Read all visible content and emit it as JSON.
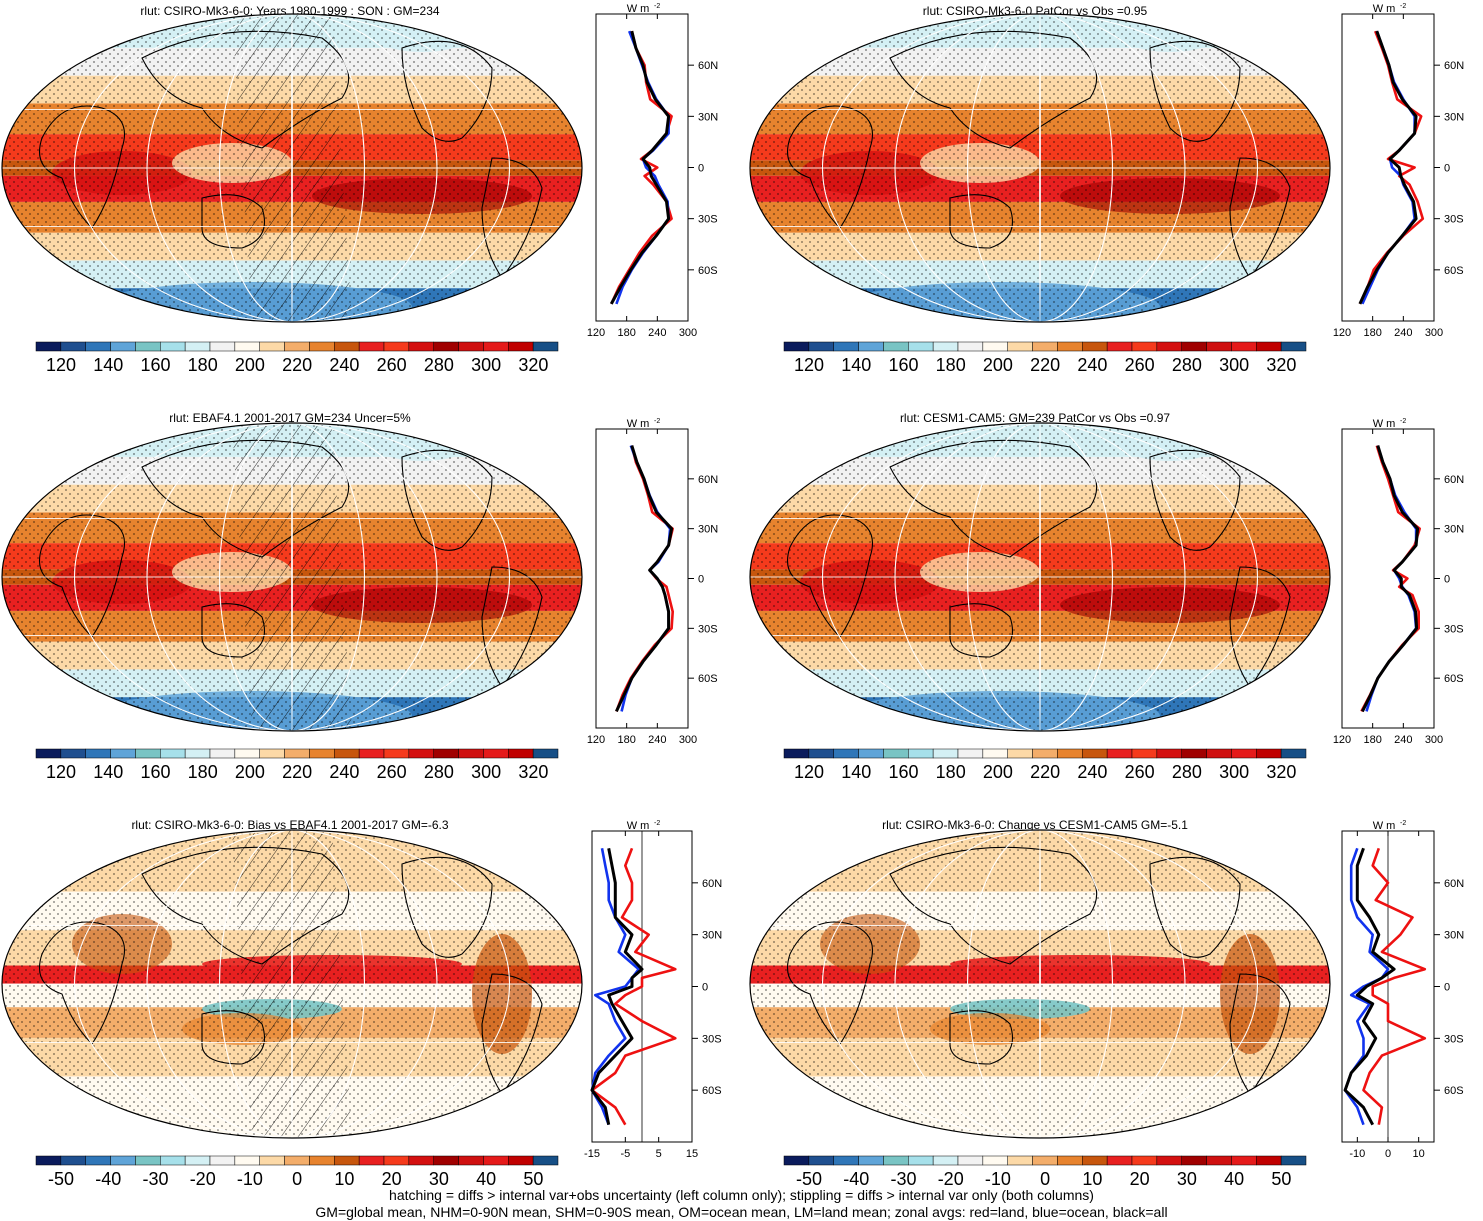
{
  "colors": {
    "scale": [
      "#0a1b5c",
      "#1f4f8f",
      "#2f76b8",
      "#5fa4d8",
      "#79c4c4",
      "#a6e0ea",
      "#d4f0f4",
      "#f2f2f2",
      "#fffaf0",
      "#fcd9a7",
      "#f3ad6a",
      "#e7832e",
      "#c7560d",
      "#e82020",
      "#f53a1c",
      "#d41010",
      "#a00000",
      "#cf1010",
      "#e51a1a",
      "#c00000",
      "#174f86"
    ],
    "land": "#000000",
    "zonal_land": "#ee1111",
    "zonal_ocean": "#1133ee",
    "zonal_all": "#000000"
  },
  "chart_data": [
    {
      "type": "heatmap",
      "title": "rlut: CSIRO-Mk3-6-0: Years 1980-1999 : SON : GM=234",
      "colorbar_ticks": [
        "120",
        "140",
        "160",
        "180",
        "200",
        "220",
        "240",
        "260",
        "280",
        "300",
        "320"
      ],
      "zonal": {
        "unit": "W m",
        "unit_sup": "-2",
        "xlim": [
          120,
          300
        ],
        "xticks": [
          "120",
          "180",
          "240",
          "300"
        ],
        "yticks": [
          "60N",
          "30N",
          "0",
          "30S",
          "60S"
        ],
        "lat": [
          80,
          70,
          60,
          50,
          40,
          30,
          20,
          10,
          5,
          0,
          -5,
          -10,
          -20,
          -30,
          -40,
          -50,
          -60,
          -70,
          -80
        ],
        "land": [
          190,
          198,
          215,
          218,
          226,
          268,
          258,
          230,
          208,
          240,
          215,
          232,
          258,
          268,
          230,
          205,
          185,
          165,
          150
        ],
        "ocean": [
          185,
          198,
          210,
          222,
          238,
          262,
          262,
          232,
          212,
          218,
          235,
          242,
          260,
          262,
          238,
          212,
          190,
          172,
          160
        ],
        "all": [
          190,
          198,
          212,
          220,
          236,
          262,
          258,
          230,
          212,
          225,
          228,
          238,
          258,
          262,
          238,
          210,
          188,
          168,
          150
        ]
      }
    },
    {
      "type": "heatmap",
      "title": "rlut: CSIRO-Mk3-6-0 PatCor vs Obs =0.95",
      "colorbar_ticks": [
        "120",
        "140",
        "160",
        "180",
        "200",
        "220",
        "240",
        "260",
        "280",
        "300",
        "320"
      ],
      "zonal": {
        "unit": "W m",
        "unit_sup": "-2",
        "xlim": [
          120,
          300
        ],
        "xticks": [
          "120",
          "180",
          "240",
          "300"
        ],
        "yticks": [
          "60N",
          "30N",
          "0",
          "30S",
          "60S"
        ],
        "lat": [
          80,
          70,
          60,
          50,
          40,
          30,
          20,
          10,
          5,
          0,
          -5,
          -10,
          -20,
          -30,
          -40,
          -50,
          -60,
          -70,
          -80
        ],
        "land": [
          185,
          198,
          210,
          218,
          228,
          275,
          262,
          232,
          210,
          262,
          232,
          252,
          268,
          278,
          240,
          208,
          182,
          170,
          155
        ],
        "ocean": [
          188,
          200,
          212,
          222,
          240,
          262,
          262,
          232,
          214,
          218,
          235,
          240,
          258,
          262,
          238,
          210,
          190,
          175,
          160
        ],
        "all": [
          188,
          200,
          212,
          220,
          238,
          265,
          262,
          232,
          214,
          232,
          235,
          242,
          260,
          265,
          238,
          210,
          188,
          170,
          155
        ]
      }
    },
    {
      "type": "heatmap",
      "title": "rlut: EBAF4.1 2001-2017 GM=234 Uncer=5%",
      "colorbar_ticks": [
        "120",
        "140",
        "160",
        "180",
        "200",
        "220",
        "240",
        "260",
        "280",
        "300",
        "320"
      ],
      "zonal": {
        "unit": "W m",
        "unit_sup": "-2",
        "xlim": [
          120,
          300
        ],
        "xticks": [
          "120",
          "180",
          "240",
          "300"
        ],
        "yticks": [
          "60N",
          "30N",
          "0",
          "30S",
          "60S"
        ],
        "lat": [
          80,
          70,
          60,
          50,
          40,
          30,
          20,
          10,
          5,
          0,
          -5,
          -10,
          -20,
          -30,
          -40,
          -50,
          -60,
          -70,
          -80
        ],
        "land": [
          190,
          198,
          212,
          222,
          230,
          270,
          262,
          240,
          225,
          238,
          258,
          262,
          270,
          268,
          235,
          210,
          188,
          172,
          160
        ],
        "ocean": [
          188,
          200,
          214,
          225,
          240,
          265,
          262,
          242,
          225,
          240,
          250,
          255,
          262,
          262,
          238,
          212,
          190,
          178,
          170
        ],
        "all": [
          190,
          200,
          214,
          224,
          238,
          268,
          262,
          240,
          225,
          240,
          250,
          255,
          262,
          262,
          238,
          212,
          190,
          175,
          160
        ]
      }
    },
    {
      "type": "heatmap",
      "title": "rlut: CESM1-CAM5: GM=239 PatCor vs Obs =0.97",
      "colorbar_ticks": [
        "120",
        "140",
        "160",
        "180",
        "200",
        "220",
        "240",
        "260",
        "280",
        "300",
        "320"
      ],
      "zonal": {
        "unit": "W m",
        "unit_sup": "-2",
        "xlim": [
          120,
          300
        ],
        "xticks": [
          "120",
          "180",
          "240",
          "300"
        ],
        "yticks": [
          "60N",
          "30N",
          "0",
          "30S",
          "60S"
        ],
        "lat": [
          80,
          70,
          60,
          50,
          40,
          30,
          20,
          10,
          5,
          0,
          -5,
          -10,
          -20,
          -30,
          -40,
          -50,
          -60,
          -70,
          -80
        ],
        "land": [
          188,
          198,
          210,
          220,
          230,
          272,
          262,
          238,
          220,
          248,
          232,
          258,
          270,
          270,
          238,
          212,
          190,
          175,
          158
        ],
        "ocean": [
          190,
          200,
          214,
          224,
          242,
          265,
          265,
          238,
          222,
          232,
          238,
          250,
          262,
          265,
          240,
          212,
          190,
          178,
          168
        ],
        "all": [
          190,
          200,
          214,
          222,
          238,
          268,
          265,
          238,
          222,
          236,
          236,
          252,
          264,
          266,
          240,
          212,
          190,
          176,
          160
        ]
      }
    },
    {
      "type": "heatmap",
      "title": "rlut: CSIRO-Mk3-6-0: Bias vs EBAF4.1 2001-2017  GM=-6.3",
      "colorbar_ticks": [
        "-50",
        "-40",
        "-30",
        "-20",
        "-10",
        "0",
        "10",
        "20",
        "30",
        "40",
        "50"
      ],
      "zonal": {
        "unit": "W m",
        "unit_sup": "-2",
        "xlim": [
          -15,
          15
        ],
        "zero_line": 0,
        "xticks": [
          "-15",
          "-5",
          "5",
          "15"
        ],
        "yticks": [
          "60N",
          "30N",
          "0",
          "30S",
          "60S"
        ],
        "lat": [
          80,
          70,
          60,
          50,
          40,
          30,
          20,
          10,
          5,
          0,
          -5,
          -10,
          -20,
          -30,
          -40,
          -50,
          -60,
          -70,
          -80
        ],
        "land": [
          -3,
          -5,
          -3,
          -3,
          -6,
          2,
          -2,
          10,
          0,
          0,
          -5,
          -8,
          0,
          10,
          -5,
          -8,
          -15,
          -8,
          -5
        ],
        "ocean": [
          -12,
          -11,
          -10,
          -10,
          -8,
          -5,
          -7,
          -1,
          -3,
          -5,
          -14,
          -10,
          -8,
          -5,
          -10,
          -14,
          -15,
          -12,
          -10
        ],
        "all": [
          -10,
          -9,
          -8,
          -8,
          -8,
          -3,
          -5,
          0,
          -3,
          -3,
          -10,
          -9,
          -6,
          -3,
          -8,
          -13,
          -15,
          -11,
          -10
        ]
      }
    },
    {
      "type": "heatmap",
      "title": "rlut: CSIRO-Mk3-6-0: Change vs CESM1-CAM5 GM=-5.1",
      "colorbar_ticks": [
        "-50",
        "-40",
        "-30",
        "-20",
        "-10",
        "0",
        "10",
        "20",
        "30",
        "40",
        "50"
      ],
      "zonal": {
        "unit": "W m",
        "unit_sup": "-2",
        "xlim": [
          -15,
          15
        ],
        "zero_line": 0,
        "xticks": [
          "-10",
          "0",
          "10"
        ],
        "yticks": [
          "60N",
          "30N",
          "0",
          "30S",
          "60S"
        ],
        "lat": [
          80,
          70,
          60,
          50,
          40,
          30,
          20,
          10,
          5,
          0,
          -5,
          -10,
          -20,
          -30,
          -40,
          -50,
          -60,
          -70,
          -80
        ],
        "land": [
          -3,
          -5,
          0,
          -4,
          8,
          4,
          -2,
          12,
          2,
          -5,
          -5,
          0,
          0,
          12,
          -2,
          -6,
          -8,
          -2,
          -3
        ],
        "ocean": [
          -10,
          -12,
          -12,
          -12,
          -10,
          -5,
          -6,
          0,
          -2,
          -8,
          -12,
          -6,
          -10,
          -8,
          -8,
          -12,
          -14,
          -10,
          -8
        ],
        "all": [
          -8,
          -10,
          -10,
          -10,
          -6,
          -3,
          -5,
          2,
          -2,
          -7,
          -10,
          -5,
          -8,
          -4,
          -7,
          -12,
          -14,
          -8,
          -5
        ]
      }
    }
  ],
  "footer": {
    "line1": "hatching = diffs > internal var+obs uncertainty (left column only); stippling = diffs > internal var only (both columns)",
    "line2": "GM=global mean, NHM=0-90N mean, SHM=0-90S mean, OM=ocean mean, LM=land mean; zonal avgs: red=land, blue=ocean, black=all"
  }
}
